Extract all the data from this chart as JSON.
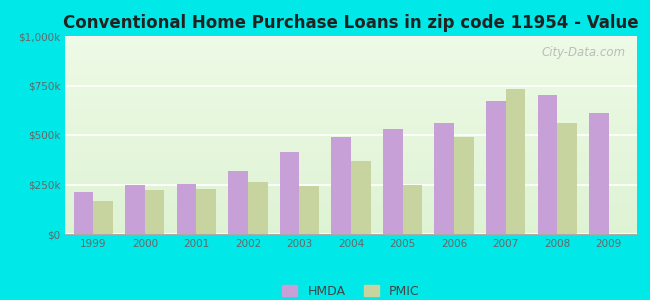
{
  "title": "Conventional Home Purchase Loans in zip code 11954 - Value",
  "years": [
    1999,
    2000,
    2001,
    2002,
    2003,
    2004,
    2005,
    2006,
    2007,
    2008,
    2009
  ],
  "hmda": [
    210000,
    245000,
    255000,
    320000,
    415000,
    490000,
    530000,
    560000,
    670000,
    700000,
    610000
  ],
  "pmic": [
    165000,
    220000,
    225000,
    265000,
    240000,
    370000,
    250000,
    490000,
    730000,
    560000,
    0
  ],
  "hmda_color": "#c8a0d8",
  "pmic_color": "#c8d4a0",
  "background_outer": "#00e8e8",
  "ylim": [
    0,
    1000000
  ],
  "yticks": [
    0,
    250000,
    500000,
    750000,
    1000000
  ],
  "ytick_labels": [
    "$0",
    "$250k",
    "$500k",
    "$750k",
    "$1,000k"
  ],
  "bar_width": 0.38,
  "title_fontsize": 12,
  "watermark_text": "City-Data.com"
}
